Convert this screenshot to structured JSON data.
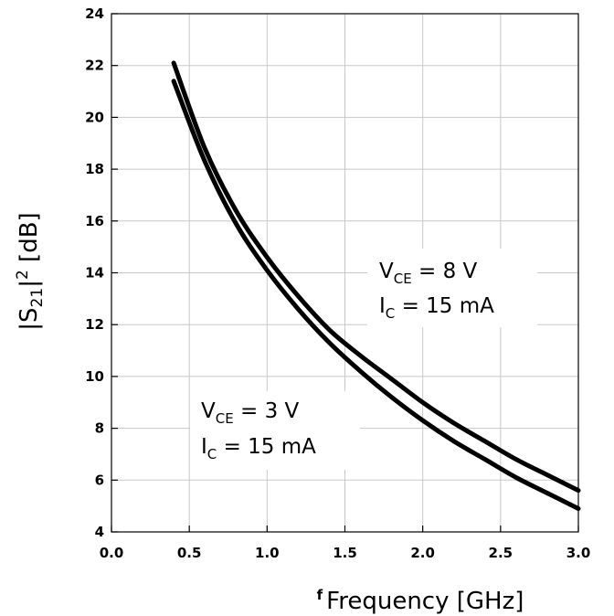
{
  "chart_data": {
    "type": "line",
    "xlabel": "Frequency [GHz]",
    "xlabel_prefix": "f",
    "ylabel": {
      "main": "|S",
      "sub": "21",
      "mid": "|",
      "sup": "2",
      "tail": " [dB]"
    },
    "xlim": [
      0.0,
      3.0
    ],
    "ylim": [
      4,
      24
    ],
    "x_ticks": [
      "0.0",
      "0.5",
      "1.0",
      "1.5",
      "2.0",
      "2.5",
      "3.0"
    ],
    "y_ticks": [
      "4",
      "6",
      "8",
      "10",
      "12",
      "14",
      "16",
      "18",
      "20",
      "22",
      "24"
    ],
    "grid": true,
    "series": [
      {
        "x": [
          0.4,
          0.6,
          0.8,
          1.0,
          1.2,
          1.4,
          1.6,
          1.8,
          2.0,
          2.2,
          2.4,
          2.6,
          2.8,
          3.0
        ],
        "y": [
          22.1,
          18.8,
          16.4,
          14.6,
          13.1,
          11.8,
          10.8,
          9.9,
          9.0,
          8.2,
          7.5,
          6.8,
          6.2,
          5.6
        ]
      },
      {
        "x": [
          0.4,
          0.6,
          0.8,
          1.0,
          1.2,
          1.4,
          1.6,
          1.8,
          2.0,
          2.2,
          2.4,
          2.6,
          2.8,
          3.0
        ],
        "y": [
          21.4,
          18.3,
          15.9,
          14.1,
          12.6,
          11.3,
          10.2,
          9.2,
          8.3,
          7.5,
          6.8,
          6.1,
          5.5,
          4.9
        ]
      }
    ],
    "annotations": [
      {
        "line1": {
          "main": "V",
          "sub": "CE",
          "rest": " = 8 V"
        },
        "line2": {
          "main": "I",
          "sub": "C",
          "rest": " = 15 mA"
        }
      },
      {
        "line1": {
          "main": "V",
          "sub": "CE",
          "rest": " = 3 V"
        },
        "line2": {
          "main": "I",
          "sub": "C",
          "rest": " = 15 mA"
        }
      }
    ]
  }
}
